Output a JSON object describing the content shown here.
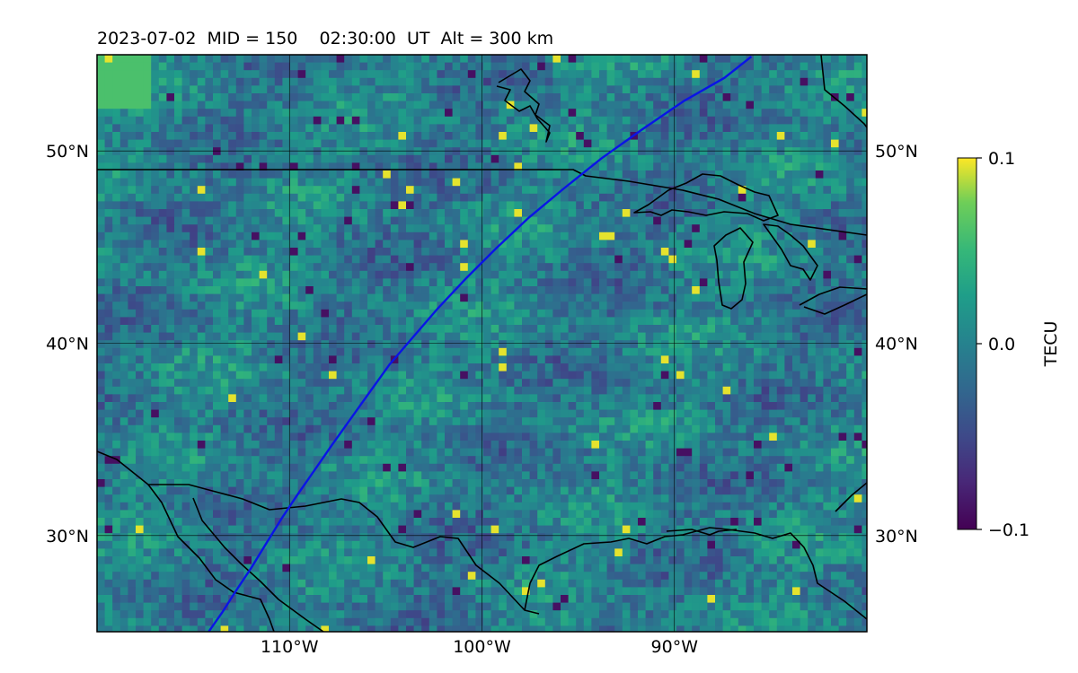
{
  "title": "2023-07-02  MID = 150    02:30:00  UT  Alt = 300 km",
  "map": {
    "lon_range": [
      -120,
      -80
    ],
    "lat_range": [
      25,
      55
    ],
    "lat_ticks": [
      {
        "value": 50,
        "label": "50°N"
      },
      {
        "value": 40,
        "label": "40°N"
      },
      {
        "value": 30,
        "label": "30°N"
      }
    ],
    "lon_ticks": [
      {
        "value": -110,
        "label": "110°W"
      },
      {
        "value": -100,
        "label": "100°W"
      },
      {
        "value": -90,
        "label": "90°W"
      }
    ],
    "gridlines": true,
    "field_colormap": "viridis",
    "track_color": "#0a14e6",
    "track": [
      [
        -114.2,
        25.0
      ],
      [
        -113.5,
        26.0
      ],
      [
        -112.8,
        27.1
      ],
      [
        -112.0,
        28.3
      ],
      [
        -111.2,
        29.6
      ],
      [
        -110.4,
        30.9
      ],
      [
        -109.6,
        32.1
      ],
      [
        -108.7,
        33.4
      ],
      [
        -107.8,
        34.7
      ],
      [
        -106.8,
        36.1
      ],
      [
        -105.8,
        37.5
      ],
      [
        -104.8,
        38.9
      ],
      [
        -103.6,
        40.3
      ],
      [
        -102.3,
        41.8
      ],
      [
        -100.8,
        43.4
      ],
      [
        -99.3,
        44.9
      ],
      [
        -97.6,
        46.5
      ],
      [
        -95.8,
        48.0
      ],
      [
        -93.8,
        49.6
      ],
      [
        -91.7,
        51.1
      ],
      [
        -89.5,
        52.6
      ],
      [
        -87.4,
        53.8
      ],
      [
        -86.0,
        54.9
      ]
    ]
  },
  "colorbar": {
    "label": "TECU",
    "vmin": -0.1,
    "vmax": 0.1,
    "ticks": [
      {
        "value": 0.1,
        "label": "0.1"
      },
      {
        "value": 0.0,
        "label": "0.0"
      },
      {
        "value": -0.1,
        "label": "−0.1"
      }
    ]
  }
}
